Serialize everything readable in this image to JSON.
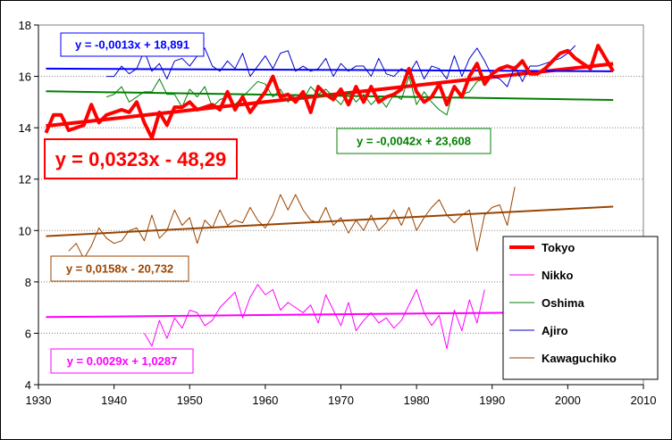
{
  "chart_data": {
    "type": "line",
    "title": "",
    "xlabel": "",
    "ylabel": "",
    "xlim": [
      1930,
      2010
    ],
    "ylim": [
      4,
      18
    ],
    "x_ticks": [
      "1930",
      "1940",
      "1950",
      "1960",
      "1970",
      "1980",
      "1990",
      "2000",
      "2010"
    ],
    "y_ticks": [
      "4",
      "6",
      "8",
      "10",
      "12",
      "14",
      "16",
      "18"
    ],
    "grid": "horizontal dotted",
    "legend_position": "bottom-right",
    "series": [
      {
        "name": "Tokyo",
        "color": "#ff0000",
        "x_start": 1931,
        "values": [
          13.8,
          14.5,
          14.5,
          13.9,
          14.0,
          14.1,
          14.9,
          14.2,
          14.5,
          14.6,
          14.7,
          14.6,
          15.0,
          14.2,
          13.6,
          14.6,
          14.1,
          14.8,
          14.8,
          15.0,
          14.7,
          14.8,
          14.9,
          14.7,
          15.4,
          14.7,
          15.2,
          14.6,
          15.0,
          15.4,
          16.0,
          15.2,
          15.3,
          15.0,
          15.4,
          14.6,
          15.6,
          15.3,
          15.1,
          15.5,
          14.9,
          15.6,
          15.0,
          15.6,
          15.0,
          15.2,
          15.3,
          15.5,
          16.3,
          15.4,
          15.0,
          15.2,
          15.7,
          14.9,
          15.6,
          15.2,
          16.0,
          16.5,
          15.7,
          16.1,
          16.3,
          16.4,
          16.3,
          16.6,
          16.1,
          16.1,
          16.3,
          16.6,
          16.9,
          17.0,
          16.7,
          16.5,
          16.3,
          17.2,
          16.7,
          16.2
        ]
      },
      {
        "name": "Nikko",
        "color": "#ff00ff",
        "x_start": 1944,
        "values": [
          6.0,
          5.5,
          6.5,
          5.8,
          6.6,
          6.2,
          6.9,
          6.8,
          6.3,
          6.5,
          7.0,
          7.3,
          7.6,
          6.6,
          7.4,
          7.9,
          7.5,
          7.7,
          6.9,
          7.2,
          7.0,
          6.8,
          7.1,
          6.4,
          7.5,
          6.9,
          6.3,
          7.2,
          6.1,
          6.5,
          6.8,
          6.4,
          6.6,
          6.2,
          6.5,
          7.1,
          7.7,
          6.8,
          6.3,
          6.7,
          5.4,
          6.9,
          6.1,
          7.3,
          6.4,
          7.7
        ]
      },
      {
        "name": "Oshima",
        "color": "#008000",
        "x_start": 1939,
        "values": [
          15.2,
          15.3,
          15.6,
          15.0,
          15.2,
          15.4,
          15.4,
          15.9,
          15.3,
          15.3,
          14.8,
          15.5,
          15.2,
          15.6,
          14.8,
          15.1,
          15.2,
          14.9,
          15.2,
          15.5,
          15.8,
          15.7,
          15.2,
          15.5,
          15.0,
          15.3,
          15.1,
          15.6,
          15.3,
          15.5,
          15.2,
          14.9,
          15.4,
          15.0,
          15.3,
          14.9,
          15.2,
          14.8,
          15.3,
          15.1,
          16.0,
          14.9,
          15.4,
          15.0,
          14.7,
          14.5,
          15.6,
          15.3,
          15.4,
          15.8,
          15.9
        ]
      },
      {
        "name": "Ajiro",
        "color": "#0000cc",
        "x_start": 1939,
        "values": [
          16.0,
          16.0,
          16.4,
          16.1,
          16.3,
          17.0,
          16.2,
          16.5,
          15.9,
          16.6,
          16.7,
          16.4,
          16.8,
          17.1,
          16.4,
          16.2,
          16.6,
          16.3,
          16.9,
          16.0,
          16.4,
          16.8,
          16.3,
          16.9,
          17.0,
          16.2,
          16.4,
          16.2,
          16.3,
          16.7,
          16.0,
          16.5,
          16.2,
          16.4,
          16.4,
          16.0,
          16.7,
          16.1,
          16.0,
          16.3,
          16.1,
          16.6,
          15.9,
          16.4,
          16.3,
          15.9,
          16.8,
          16.0,
          16.7,
          17.1,
          16.6,
          16.0,
          15.9,
          15.6,
          16.4,
          15.8,
          16.4,
          16.4,
          16.5,
          16.6,
          16.7,
          16.9,
          17.2
        ]
      },
      {
        "name": "Kawaguchiko",
        "color": "#994400",
        "x_start": 1934,
        "values": [
          9.2,
          9.5,
          8.9,
          9.4,
          10.1,
          9.7,
          9.5,
          9.6,
          10.0,
          10.1,
          9.6,
          10.6,
          9.7,
          10.0,
          10.8,
          10.2,
          10.5,
          9.5,
          10.4,
          10.1,
          10.8,
          10.2,
          10.4,
          10.3,
          10.9,
          10.4,
          10.1,
          10.6,
          11.4,
          10.8,
          11.4,
          10.8,
          10.4,
          10.3,
          10.9,
          10.2,
          10.5,
          9.9,
          10.4,
          10.0,
          10.6,
          10.0,
          10.3,
          10.8,
          10.2,
          10.9,
          10.0,
          10.5,
          10.9,
          11.2,
          10.6,
          10.3,
          10.6,
          10.8,
          9.2,
          10.6,
          10.9,
          11.0,
          10.2,
          11.7
        ]
      }
    ],
    "trendlines": [
      {
        "series": "Tokyo",
        "equation": "y = 0,0323x - 48,29",
        "x_range": [
          1931,
          2006
        ],
        "y_range": [
          14.07,
          16.49
        ],
        "color": "#ff0000",
        "label_color": "#ff0000"
      },
      {
        "series": "Ajiro",
        "equation": "y = -0,0013x + 18,891",
        "x_range": [
          1931,
          2006
        ],
        "y_range": [
          16.3,
          16.2
        ],
        "color": "#0000ff",
        "label_color": "#0000ff"
      },
      {
        "series": "Oshima",
        "equation": "y = -0,0042x + 23,608",
        "x_range": [
          1931,
          2006
        ],
        "y_range": [
          15.42,
          15.08
        ],
        "color": "#008000",
        "label_color": "#008000"
      },
      {
        "series": "Kawaguchiko",
        "equation": "y = 0,0158x - 20,732",
        "x_range": [
          1931,
          2006
        ],
        "y_range": [
          9.78,
          10.93
        ],
        "color": "#994400",
        "label_color": "#994400"
      },
      {
        "series": "Nikko",
        "equation": "y = 0.0029x + 1,0287",
        "x_range": [
          1931,
          2006
        ],
        "y_range": [
          6.63,
          6.84
        ],
        "color": "#ff00ff",
        "label_color": "#ff00ff"
      }
    ]
  }
}
